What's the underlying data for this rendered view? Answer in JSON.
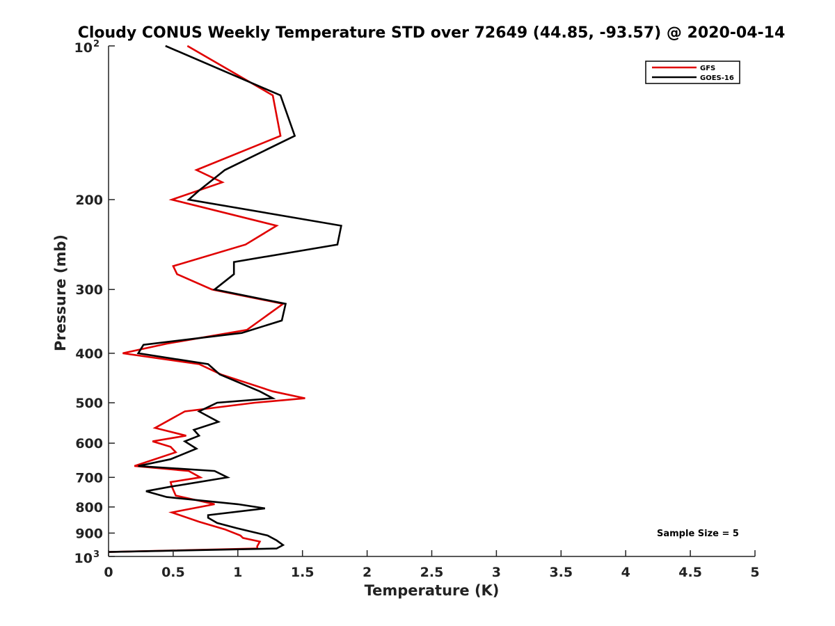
{
  "chart_data": {
    "type": "line",
    "title": "Cloudy CONUS Weekly Temperature STD over 72649 (44.85, -93.57) @ 2020-04-14",
    "xlabel": "Temperature (K)",
    "ylabel": "Pressure (mb)",
    "xlim": [
      0,
      5
    ],
    "ylim": [
      100,
      1000
    ],
    "y_scale": "log",
    "y_reversed": true,
    "grid": false,
    "legend_position": "top-right",
    "x_ticks": [
      "0",
      "0.5",
      "1",
      "1.5",
      "2",
      "2.5",
      "3",
      "3.5",
      "4",
      "4.5",
      "5"
    ],
    "x_tick_values": [
      0,
      0.5,
      1,
      1.5,
      2,
      2.5,
      3,
      3.5,
      4,
      4.5,
      5
    ],
    "y_tick_values": [
      200,
      300,
      400,
      500,
      600,
      700,
      800,
      900
    ],
    "y_ticks": [
      "200",
      "300",
      "400",
      "500",
      "600",
      "700",
      "800",
      "900"
    ],
    "y_end_ticks": [
      {
        "value": 100,
        "base": "10",
        "exp": "2"
      },
      {
        "value": 1000,
        "base": "10",
        "exp": "3"
      }
    ],
    "annotation": "Sample Size = 5",
    "series": [
      {
        "name": "GFS",
        "color": "#e00000",
        "points": [
          [
            0.61,
            100
          ],
          [
            1.27,
            125
          ],
          [
            1.33,
            150
          ],
          [
            0.68,
            175
          ],
          [
            0.88,
            185
          ],
          [
            0.49,
            200
          ],
          [
            1.3,
            225
          ],
          [
            1.06,
            245
          ],
          [
            0.5,
            270
          ],
          [
            0.53,
            280
          ],
          [
            0.8,
            300
          ],
          [
            1.35,
            320
          ],
          [
            1.07,
            360
          ],
          [
            0.45,
            383
          ],
          [
            0.11,
            400
          ],
          [
            0.7,
            420
          ],
          [
            0.87,
            440
          ],
          [
            1.27,
            475
          ],
          [
            1.52,
            490
          ],
          [
            1.13,
            500
          ],
          [
            0.59,
            520
          ],
          [
            0.36,
            560
          ],
          [
            0.6,
            580
          ],
          [
            0.34,
            595
          ],
          [
            0.48,
            610
          ],
          [
            0.52,
            625
          ],
          [
            0.2,
            665
          ],
          [
            0.62,
            680
          ],
          [
            0.71,
            700
          ],
          [
            0.48,
            715
          ],
          [
            0.49,
            730
          ],
          [
            0.52,
            760
          ],
          [
            0.82,
            790
          ],
          [
            0.49,
            820
          ],
          [
            0.7,
            855
          ],
          [
            0.9,
            885
          ],
          [
            1.02,
            910
          ],
          [
            1.04,
            920
          ],
          [
            1.17,
            935
          ],
          [
            1.15,
            955
          ],
          [
            1.15,
            965
          ],
          [
            0.0,
            980
          ]
        ]
      },
      {
        "name": "GOES-16",
        "color": "#000000",
        "points": [
          [
            0.44,
            100
          ],
          [
            1.33,
            125
          ],
          [
            1.44,
            150
          ],
          [
            0.9,
            175
          ],
          [
            0.7,
            192
          ],
          [
            0.62,
            200
          ],
          [
            1.8,
            225
          ],
          [
            1.77,
            245
          ],
          [
            0.97,
            265
          ],
          [
            0.97,
            280
          ],
          [
            0.82,
            300
          ],
          [
            1.37,
            320
          ],
          [
            1.34,
            345
          ],
          [
            1.03,
            365
          ],
          [
            0.27,
            385
          ],
          [
            0.23,
            400
          ],
          [
            0.77,
            420
          ],
          [
            0.86,
            440
          ],
          [
            1.17,
            475
          ],
          [
            1.27,
            490
          ],
          [
            0.84,
            500
          ],
          [
            0.7,
            520
          ],
          [
            0.85,
            545
          ],
          [
            0.66,
            565
          ],
          [
            0.7,
            580
          ],
          [
            0.59,
            595
          ],
          [
            0.68,
            615
          ],
          [
            0.48,
            645
          ],
          [
            0.23,
            665
          ],
          [
            0.82,
            680
          ],
          [
            0.92,
            700
          ],
          [
            0.48,
            730
          ],
          [
            0.29,
            745
          ],
          [
            0.45,
            765
          ],
          [
            1.0,
            790
          ],
          [
            1.21,
            805
          ],
          [
            0.77,
            830
          ],
          [
            0.77,
            840
          ],
          [
            0.84,
            860
          ],
          [
            0.99,
            880
          ],
          [
            1.15,
            900
          ],
          [
            1.23,
            910
          ],
          [
            1.3,
            930
          ],
          [
            1.35,
            950
          ],
          [
            1.3,
            965
          ],
          [
            0.0,
            980
          ]
        ]
      }
    ]
  }
}
